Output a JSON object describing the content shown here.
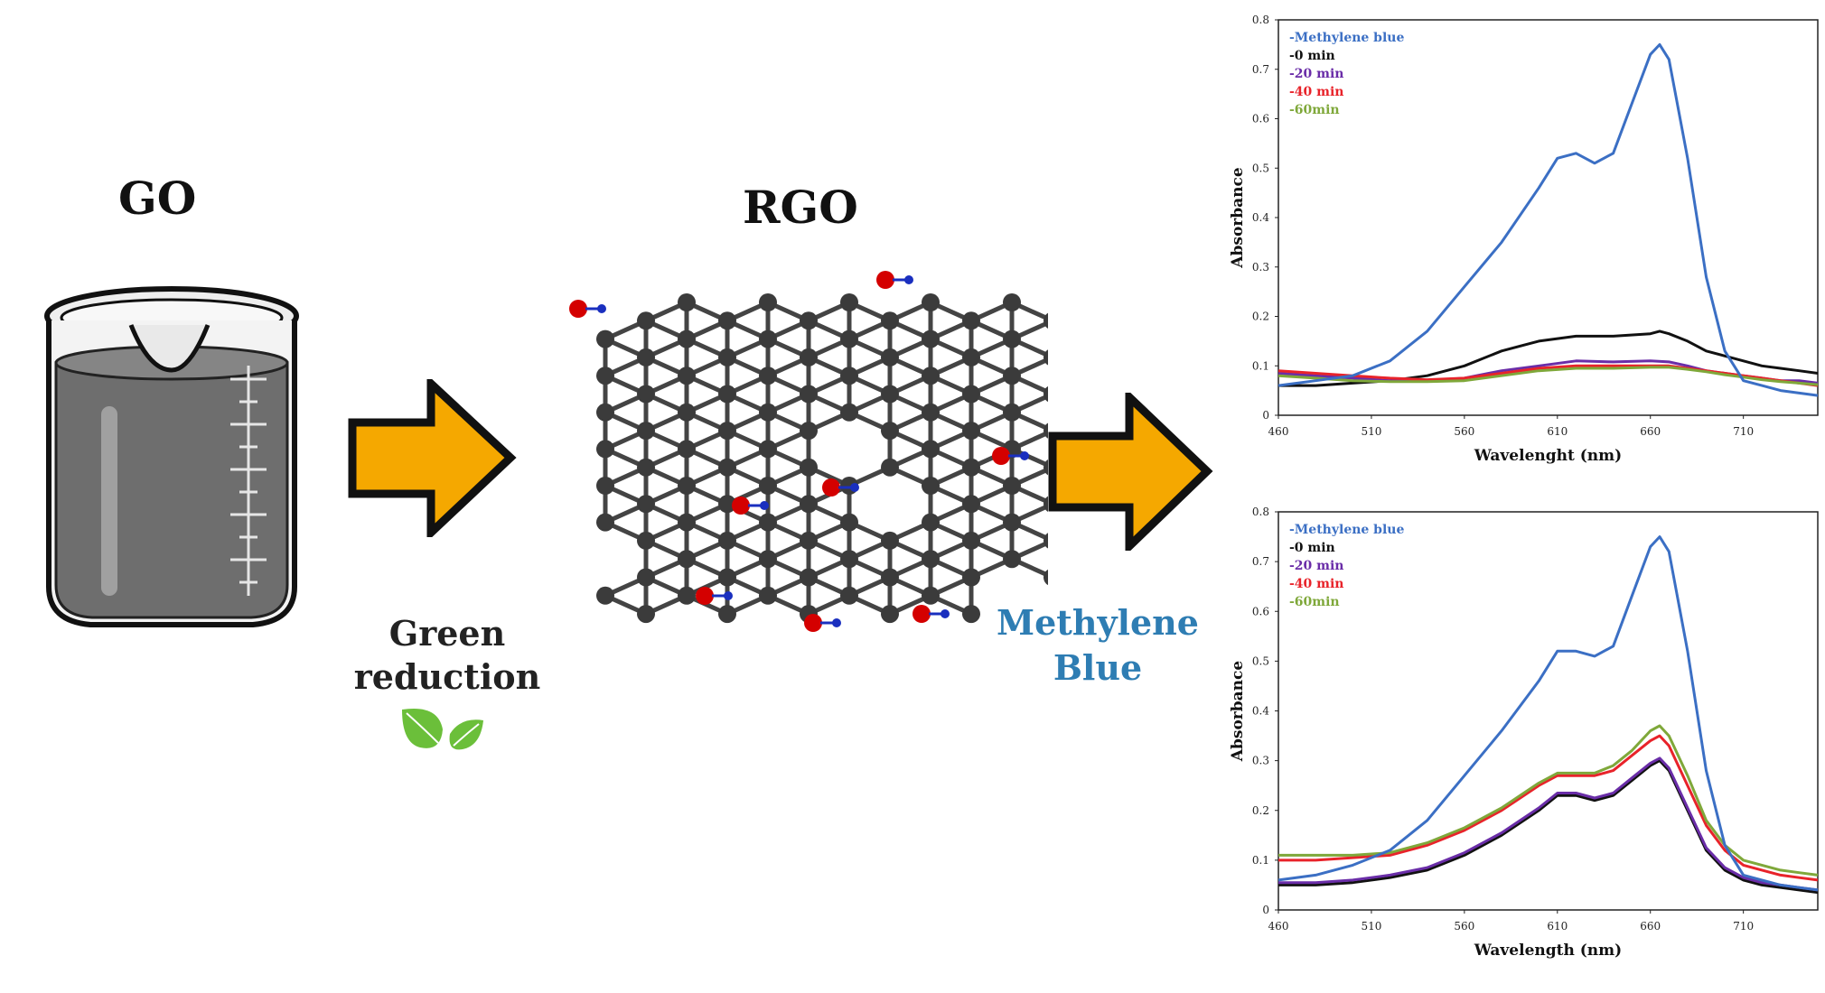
{
  "go_title": "GO",
  "rgo_title": "RGO",
  "green_reduction": [
    "Green",
    "reduction"
  ],
  "methylene_blue": [
    "Methylene",
    "Blue"
  ],
  "colors": {
    "arrow_fill": "#F5A800",
    "mb_text": "#2E7DB3",
    "leaf": "#6BBF3A",
    "atom_c": "#3b3b3b",
    "atom_o": "#D40000",
    "atom_h": "#1a2fbf"
  },
  "chart_data": [
    {
      "type": "line",
      "xlabel": "Wavelenght (nm)",
      "ylabel": "Absorbance",
      "xlim": [
        460,
        750
      ],
      "ylim": [
        0,
        0.8
      ],
      "xticks": [
        "460",
        "510",
        "560",
        "610",
        "660",
        "710"
      ],
      "yticks": [
        "0",
        "0.1",
        "0.2",
        "0.3",
        "0.4",
        "0.5",
        "0.6",
        "0.7",
        "0.8"
      ],
      "legend_position": "top-left",
      "series": [
        {
          "name": "-Methylene blue",
          "color": "#3B6FC4",
          "x": [
            460,
            480,
            500,
            520,
            540,
            560,
            580,
            600,
            610,
            620,
            630,
            640,
            650,
            660,
            665,
            670,
            680,
            690,
            700,
            710,
            720,
            730,
            740,
            750
          ],
          "y": [
            0.06,
            0.07,
            0.08,
            0.11,
            0.17,
            0.26,
            0.35,
            0.46,
            0.52,
            0.53,
            0.51,
            0.53,
            0.63,
            0.73,
            0.75,
            0.72,
            0.52,
            0.28,
            0.13,
            0.07,
            0.06,
            0.05,
            0.045,
            0.04
          ]
        },
        {
          "name": "-0 min",
          "color": "#111111",
          "x": [
            460,
            480,
            500,
            520,
            540,
            560,
            580,
            600,
            620,
            640,
            660,
            665,
            670,
            680,
            690,
            700,
            710,
            720,
            730,
            740,
            750
          ],
          "y": [
            0.06,
            0.06,
            0.065,
            0.07,
            0.08,
            0.1,
            0.13,
            0.15,
            0.16,
            0.16,
            0.165,
            0.17,
            0.165,
            0.15,
            0.13,
            0.12,
            0.11,
            0.1,
            0.095,
            0.09,
            0.085
          ]
        },
        {
          "name": "-20 min",
          "color": "#6A2DA8",
          "x": [
            460,
            480,
            500,
            520,
            540,
            560,
            580,
            600,
            620,
            640,
            660,
            670,
            680,
            690,
            700,
            710,
            720,
            730,
            740,
            750
          ],
          "y": [
            0.085,
            0.08,
            0.075,
            0.07,
            0.07,
            0.075,
            0.09,
            0.1,
            0.11,
            0.108,
            0.11,
            0.108,
            0.1,
            0.09,
            0.085,
            0.08,
            0.075,
            0.07,
            0.07,
            0.065
          ]
        },
        {
          "name": "-40 min",
          "color": "#E8232A",
          "x": [
            460,
            480,
            500,
            520,
            540,
            560,
            580,
            600,
            620,
            640,
            660,
            670,
            680,
            690,
            700,
            710,
            720,
            730,
            740,
            750
          ],
          "y": [
            0.09,
            0.085,
            0.08,
            0.075,
            0.072,
            0.075,
            0.085,
            0.095,
            0.1,
            0.1,
            0.1,
            0.1,
            0.095,
            0.09,
            0.085,
            0.08,
            0.075,
            0.07,
            0.065,
            0.06
          ]
        },
        {
          "name": "-60min",
          "color": "#7FA83A",
          "x": [
            460,
            480,
            500,
            520,
            540,
            560,
            580,
            600,
            620,
            640,
            660,
            670,
            680,
            690,
            700,
            710,
            720,
            730,
            740,
            750
          ],
          "y": [
            0.08,
            0.075,
            0.07,
            0.068,
            0.068,
            0.07,
            0.08,
            0.09,
            0.095,
            0.095,
            0.097,
            0.097,
            0.093,
            0.088,
            0.082,
            0.077,
            0.072,
            0.068,
            0.065,
            0.062
          ]
        }
      ]
    },
    {
      "type": "line",
      "xlabel": "Wavelength (nm)",
      "ylabel": "Absorbance",
      "xlim": [
        460,
        750
      ],
      "ylim": [
        0,
        0.8
      ],
      "xticks": [
        "460",
        "510",
        "560",
        "610",
        "660",
        "710"
      ],
      "yticks": [
        "0",
        "0.1",
        "0.2",
        "0.3",
        "0.4",
        "0.5",
        "0.6",
        "0.7",
        "0.8"
      ],
      "legend_position": "top-left",
      "series": [
        {
          "name": "-Methylene blue",
          "color": "#3B6FC4",
          "x": [
            460,
            480,
            500,
            520,
            540,
            560,
            580,
            600,
            610,
            620,
            630,
            640,
            650,
            660,
            665,
            670,
            680,
            690,
            700,
            710,
            720,
            730,
            740,
            750
          ],
          "y": [
            0.06,
            0.07,
            0.09,
            0.12,
            0.18,
            0.27,
            0.36,
            0.46,
            0.52,
            0.52,
            0.51,
            0.53,
            0.63,
            0.73,
            0.75,
            0.72,
            0.52,
            0.28,
            0.13,
            0.07,
            0.06,
            0.05,
            0.045,
            0.04
          ]
        },
        {
          "name": "-0 min",
          "color": "#111111",
          "x": [
            460,
            480,
            500,
            520,
            540,
            560,
            580,
            600,
            610,
            620,
            630,
            640,
            650,
            660,
            665,
            670,
            680,
            690,
            700,
            710,
            720,
            730,
            740,
            750
          ],
          "y": [
            0.05,
            0.05,
            0.055,
            0.065,
            0.08,
            0.11,
            0.15,
            0.2,
            0.23,
            0.23,
            0.22,
            0.23,
            0.26,
            0.29,
            0.3,
            0.28,
            0.2,
            0.12,
            0.08,
            0.06,
            0.05,
            0.045,
            0.04,
            0.035
          ]
        },
        {
          "name": "-20 min",
          "color": "#6A2DA8",
          "x": [
            460,
            480,
            500,
            520,
            540,
            560,
            580,
            600,
            610,
            620,
            630,
            640,
            650,
            660,
            665,
            670,
            680,
            690,
            700,
            710,
            720,
            730,
            740,
            750
          ],
          "y": [
            0.055,
            0.055,
            0.06,
            0.07,
            0.085,
            0.115,
            0.155,
            0.205,
            0.235,
            0.235,
            0.225,
            0.235,
            0.265,
            0.295,
            0.305,
            0.285,
            0.205,
            0.125,
            0.085,
            0.065,
            0.055,
            0.05,
            0.045,
            0.04
          ]
        },
        {
          "name": "-40 min",
          "color": "#E8232A",
          "x": [
            460,
            480,
            500,
            520,
            540,
            560,
            580,
            600,
            610,
            620,
            630,
            640,
            650,
            660,
            665,
            670,
            680,
            690,
            700,
            710,
            720,
            730,
            740,
            750
          ],
          "y": [
            0.1,
            0.1,
            0.105,
            0.11,
            0.13,
            0.16,
            0.2,
            0.25,
            0.27,
            0.27,
            0.27,
            0.28,
            0.31,
            0.34,
            0.35,
            0.33,
            0.25,
            0.17,
            0.12,
            0.09,
            0.08,
            0.07,
            0.065,
            0.06
          ]
        },
        {
          "name": "-60min",
          "color": "#7FA83A",
          "x": [
            460,
            480,
            500,
            520,
            540,
            560,
            580,
            600,
            610,
            620,
            630,
            640,
            650,
            660,
            665,
            670,
            680,
            690,
            700,
            710,
            720,
            730,
            740,
            750
          ],
          "y": [
            0.11,
            0.11,
            0.11,
            0.115,
            0.135,
            0.165,
            0.205,
            0.255,
            0.275,
            0.275,
            0.275,
            0.29,
            0.32,
            0.36,
            0.37,
            0.35,
            0.27,
            0.18,
            0.13,
            0.1,
            0.09,
            0.08,
            0.075,
            0.07
          ]
        }
      ]
    }
  ]
}
